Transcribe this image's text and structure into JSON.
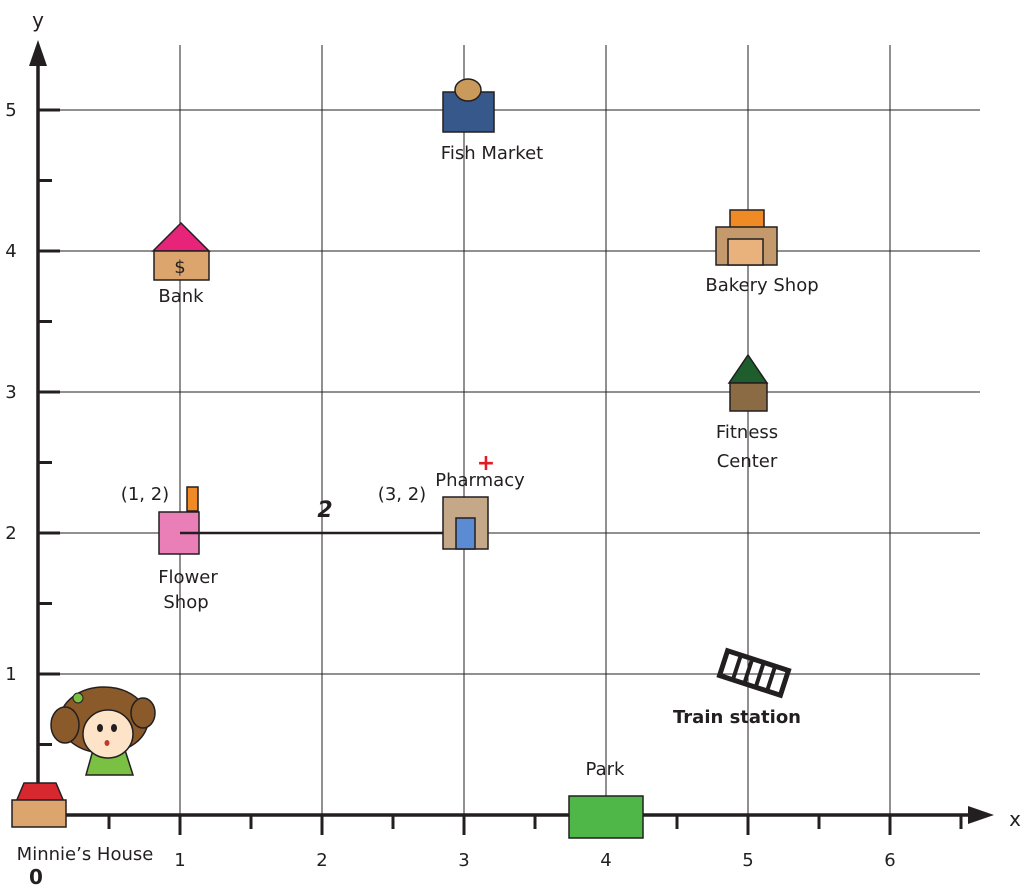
{
  "axes": {
    "x_label": "x",
    "y_label": "y",
    "origin_label": "0",
    "x_ticks": [
      "1",
      "2",
      "3",
      "4",
      "5",
      "6"
    ],
    "y_ticks": [
      "1",
      "2",
      "3",
      "4",
      "5"
    ]
  },
  "places": {
    "minnies_house": {
      "label": "Minnie’s House",
      "x": 0,
      "y": 0
    },
    "bank": {
      "label": "Bank",
      "symbol": "$",
      "x": 1,
      "y": 4
    },
    "fish_market": {
      "label": "Fish Market",
      "x": 3,
      "y": 5
    },
    "bakery_shop": {
      "label": "Bakery Shop",
      "x": 5,
      "y": 4
    },
    "fitness_center": {
      "label_line1": "Fitness",
      "label_line2": "Center",
      "x": 5,
      "y": 3
    },
    "pharmacy": {
      "label": "Pharmacy",
      "symbol": "+",
      "coord_label": "(3, 2)",
      "x": 3,
      "y": 2
    },
    "flower_shop": {
      "label_line1": "Flower",
      "label_line2": "Shop",
      "coord_label": "(1, 2)",
      "x": 1,
      "y": 2
    },
    "train_station": {
      "label": "Train station",
      "x": 5,
      "y": 1
    },
    "park": {
      "label": "Park",
      "x": 4,
      "y": 0
    }
  },
  "distance_segment": {
    "from": "flower_shop",
    "to": "pharmacy",
    "label": "2"
  },
  "colors": {
    "grid": "#231f20",
    "house_roof": "#d7282f",
    "house_body": "#dba56d",
    "bank_roof": "#e8247a",
    "bank_body": "#dba56d",
    "fish_body": "#36588b",
    "fish_head": "#c99a5c",
    "bakery_top": "#f08a24",
    "bakery_body": "#c49a6c",
    "bakery_inner": "#e9b17c",
    "fitness_roof": "#1d5e2c",
    "fitness_body": "#8b6b43",
    "pharmacy_body": "#c4a888",
    "pharmacy_door": "#5b8cd3",
    "pharmacy_cross": "#e21c24",
    "flower_body": "#ea7fb8",
    "flower_tag": "#f08a24",
    "park": "#4eb748",
    "girl_hair": "#8b5a2b",
    "girl_dress": "#7ac043"
  }
}
